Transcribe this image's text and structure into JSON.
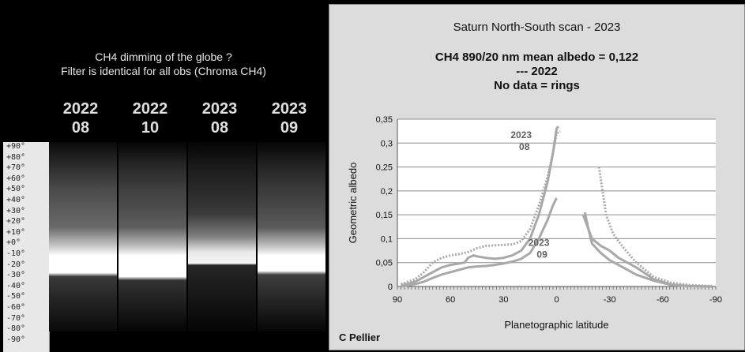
{
  "left_panel": {
    "caption_line1": "CH4 dimming of the globe ?",
    "caption_line2": "Filter is identical for all obs (Chroma CH4)",
    "strips": [
      {
        "year": "2022",
        "month": "08"
      },
      {
        "year": "2022",
        "month": "10"
      },
      {
        "year": "2023",
        "month": "08"
      },
      {
        "year": "2023",
        "month": "09"
      }
    ],
    "latitude_ticks": [
      "+90°",
      "+80°",
      "+70°",
      "+60°",
      "+50°",
      "+40°",
      "+30°",
      "+20°",
      "+10°",
      "+0°",
      "-10°",
      "-20°",
      "-30°",
      "-40°",
      "-50°",
      "-60°",
      "-70°",
      "-80°",
      "-90°"
    ]
  },
  "chart_panel": {
    "title": "Saturn North-South scan - 2023",
    "subtitle1": "CH4 890/20 nm mean albedo = 0,122",
    "subtitle2": "--- 2022",
    "subtitle3": "No data = rings",
    "credit": "C Pellier"
  },
  "chart_data": {
    "type": "line",
    "xlabel": "Planetographic latitude",
    "ylabel": "Geometric albedo",
    "xlim": [
      90,
      -90
    ],
    "ylim": [
      0,
      0.35
    ],
    "x_ticks": [
      "90",
      "60",
      "30",
      "0",
      "-30",
      "-60",
      "-90"
    ],
    "y_ticks": [
      "0",
      "0,05",
      "0,1",
      "0,15",
      "0,2",
      "0,25",
      "0,3",
      "0,35"
    ],
    "grid": true,
    "annotations": [
      {
        "text_line1": "2023",
        "text_line2": "08",
        "x": 20,
        "y": 0.31
      },
      {
        "text_line1": "2023",
        "text_line2": "09",
        "x": 10,
        "y": 0.085
      }
    ],
    "series": [
      {
        "style": "dotted",
        "color": "#a8a8a8",
        "segments": [
          [
            [
              88,
              0.005
            ],
            [
              80,
              0.015
            ],
            [
              75,
              0.03
            ],
            [
              70,
              0.05
            ],
            [
              65,
              0.06
            ],
            [
              60,
              0.065
            ],
            [
              55,
              0.068
            ],
            [
              50,
              0.072
            ],
            [
              45,
              0.08
            ],
            [
              40,
              0.085
            ],
            [
              35,
              0.086
            ],
            [
              30,
              0.087
            ],
            [
              25,
              0.088
            ],
            [
              20,
              0.095
            ],
            [
              15,
              0.12
            ],
            [
              10,
              0.17
            ],
            [
              5,
              0.23
            ],
            [
              2,
              0.28
            ],
            [
              0,
              0.32
            ],
            [
              -2,
              0.325
            ]
          ],
          [
            [
              -24,
              0.25
            ],
            [
              -26,
              0.2
            ],
            [
              -28,
              0.15
            ],
            [
              -32,
              0.11
            ],
            [
              -38,
              0.08
            ],
            [
              -45,
              0.05
            ],
            [
              -55,
              0.02
            ],
            [
              -65,
              0.008
            ],
            [
              -75,
              0.003
            ],
            [
              -88,
              0.001
            ]
          ]
        ]
      },
      {
        "style": "solid",
        "color": "#a8a8a8",
        "segments": [
          [
            [
              88,
              0.002
            ],
            [
              80,
              0.01
            ],
            [
              75,
              0.02
            ],
            [
              70,
              0.03
            ],
            [
              65,
              0.04
            ],
            [
              60,
              0.045
            ],
            [
              55,
              0.048
            ],
            [
              52,
              0.05
            ],
            [
              50,
              0.06
            ],
            [
              47,
              0.065
            ],
            [
              45,
              0.063
            ],
            [
              40,
              0.06
            ],
            [
              35,
              0.058
            ],
            [
              30,
              0.06
            ],
            [
              25,
              0.065
            ],
            [
              20,
              0.075
            ],
            [
              15,
              0.1
            ],
            [
              10,
              0.15
            ],
            [
              5,
              0.22
            ],
            [
              2,
              0.28
            ],
            [
              0,
              0.33
            ],
            [
              -1,
              0.335
            ]
          ],
          [
            [
              -15,
              0.15
            ],
            [
              -17,
              0.13
            ],
            [
              -20,
              0.1
            ],
            [
              -25,
              0.085
            ],
            [
              -30,
              0.075
            ],
            [
              -35,
              0.06
            ],
            [
              -40,
              0.05
            ],
            [
              -45,
              0.04
            ],
            [
              -55,
              0.015
            ],
            [
              -65,
              0.004
            ],
            [
              -75,
              0.001
            ],
            [
              -88,
              0.0
            ]
          ]
        ]
      },
      {
        "style": "solid",
        "color": "#a8a8a8",
        "segments": [
          [
            [
              88,
              0.0
            ],
            [
              80,
              0.005
            ],
            [
              75,
              0.01
            ],
            [
              70,
              0.018
            ],
            [
              65,
              0.025
            ],
            [
              60,
              0.03
            ],
            [
              55,
              0.035
            ],
            [
              50,
              0.04
            ],
            [
              45,
              0.042
            ],
            [
              40,
              0.043
            ],
            [
              35,
              0.045
            ],
            [
              30,
              0.048
            ],
            [
              25,
              0.052
            ],
            [
              20,
              0.058
            ],
            [
              15,
              0.07
            ],
            [
              10,
              0.1
            ],
            [
              5,
              0.14
            ],
            [
              2,
              0.17
            ],
            [
              0,
              0.185
            ]
          ],
          [
            [
              -16,
              0.155
            ],
            [
              -18,
              0.12
            ],
            [
              -20,
              0.09
            ],
            [
              -25,
              0.07
            ],
            [
              -30,
              0.055
            ],
            [
              -35,
              0.045
            ],
            [
              -40,
              0.035
            ],
            [
              -45,
              0.025
            ],
            [
              -55,
              0.012
            ],
            [
              -65,
              0.003
            ],
            [
              -75,
              0.001
            ],
            [
              -88,
              0.0
            ]
          ]
        ]
      }
    ]
  }
}
